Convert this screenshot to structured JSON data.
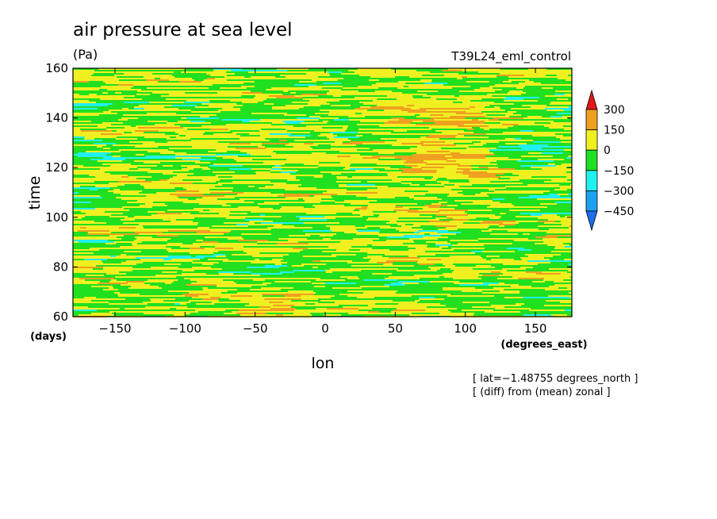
{
  "chart_data": {
    "type": "heatmap",
    "title": "air pressure at sea level",
    "units": "(Pa)",
    "run_label": "T39L24_eml_control",
    "xlabel": "lon",
    "x_units": "(degrees_east)",
    "ylabel": "time",
    "y_units": "(days)",
    "xlim": [
      -180,
      176
    ],
    "ylim": [
      60,
      160
    ],
    "x_ticks": [
      -150,
      -100,
      -50,
      0,
      50,
      100,
      150
    ],
    "y_ticks": [
      60,
      80,
      100,
      120,
      140,
      160
    ],
    "x_tick_labels": [
      "−150",
      "−100",
      "−50",
      "0",
      "50",
      "100",
      "150"
    ],
    "y_tick_labels": [
      "60",
      "80",
      "100",
      "120",
      "140",
      "160"
    ],
    "colorbar": {
      "levels": [
        -450,
        -300,
        -150,
        0,
        150,
        300
      ],
      "level_labels": [
        "−450",
        "−300",
        "−150",
        "0",
        "150",
        "300"
      ],
      "colors": [
        "#1e6cf0",
        "#1ea0f0",
        "#20f0f0",
        "#20e020",
        "#f0f020",
        "#f0a020",
        "#e01818"
      ],
      "extend": "both"
    },
    "notes": [
      "[ lat=−1.48755 degrees_north ]",
      "[ (diff) from (mean) zonal ]"
    ],
    "dominant_pattern": {
      "description_values": [
        {
          "lon": 80,
          "time": 120,
          "level": "150 to 300"
        },
        {
          "lon": -40,
          "time": 65,
          "level": "150 to 300"
        }
      ]
    }
  }
}
